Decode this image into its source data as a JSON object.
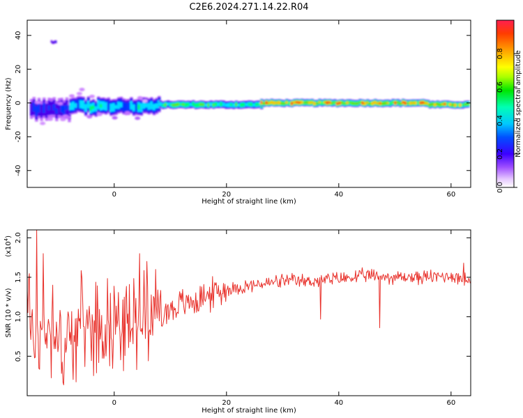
{
  "title": "C2E6.2024.271.14.22.R04",
  "chart_data": [
    {
      "type": "heatmap",
      "xlabel": "Height of straight line (km)",
      "ylabel": "Frequency (Hz)",
      "xlim": [
        -15.5,
        63.5
      ],
      "ylim": [
        -50,
        49
      ],
      "xticks": [
        0,
        20,
        40,
        60
      ],
      "yticks": [
        -40,
        -20,
        0,
        20,
        40
      ],
      "colorbar": {
        "label": "Normalized spectral amplitude",
        "range": [
          0,
          1
        ],
        "ticks": [
          "0.0",
          "0.2",
          "0.4",
          "0.6",
          "0.8"
        ],
        "colormap": [
          "#ffffff",
          "#c878ff",
          "#5a00e6",
          "#0000ff",
          "#00b4ff",
          "#00ffff",
          "#00ff64",
          "#32d700",
          "#ffff00",
          "#ffa000",
          "#ff3c00",
          "#e61e46"
        ]
      },
      "features": [
        {
          "x": [
            -15,
            -8
          ],
          "freq": -4,
          "amplitude": 0.28,
          "spread_hz": 4.5
        },
        {
          "x": [
            -8,
            8
          ],
          "freq": -2,
          "amplitude": 0.45,
          "spread_hz": 3.5
        },
        {
          "x": [
            8,
            26
          ],
          "freq": -1,
          "amplitude": 0.55,
          "spread_hz": 2.2
        },
        {
          "x": [
            26,
            56
          ],
          "freq": 0,
          "amplitude": 0.8,
          "spread_hz": 2.0
        },
        {
          "x": [
            56,
            63
          ],
          "freq": -1,
          "amplitude": 0.75,
          "spread_hz": 2.0
        },
        {
          "x": [
            -11.3,
            -10.5
          ],
          "freq": 36,
          "amplitude": 0.25,
          "spread_hz": 1.0
        }
      ]
    },
    {
      "type": "line",
      "xlabel": "Height of straight line (km)",
      "ylabel": "SNR (10 * v/v)",
      "y_multiplier": "(x10",
      "y_multiplier_exp": "4",
      "y_multiplier_close": ")",
      "xlim": [
        -15.5,
        63.5
      ],
      "ylim": [
        0,
        2.1
      ],
      "xticks": [
        0,
        20,
        40,
        60
      ],
      "yticks": [
        0.5,
        1.0,
        1.5,
        2.0
      ],
      "ytick_labels": [
        "0.5",
        "1.0",
        "1.5",
        "2.0"
      ],
      "color": "#e8302a",
      "x": [
        -15,
        -12,
        -9,
        -6,
        -3,
        0,
        3,
        5,
        8,
        12,
        16,
        20,
        25,
        30,
        35,
        40,
        45,
        50,
        55,
        60,
        63.5
      ],
      "y": [
        0.7,
        0.9,
        0.6,
        0.9,
        0.9,
        0.95,
        0.9,
        1.1,
        1.05,
        1.15,
        1.25,
        1.35,
        1.4,
        1.45,
        1.45,
        1.48,
        1.52,
        1.5,
        1.5,
        1.52,
        1.45
      ],
      "peaks": [
        [
          -13.8,
          2.1
        ],
        [
          -12.6,
          1.8
        ],
        [
          -11,
          1.4
        ],
        [
          4.5,
          1.8
        ],
        [
          5.8,
          1.7
        ],
        [
          36.8,
          0.97
        ],
        [
          47.3,
          0.86
        ],
        [
          62.2,
          1.68
        ]
      ]
    }
  ]
}
